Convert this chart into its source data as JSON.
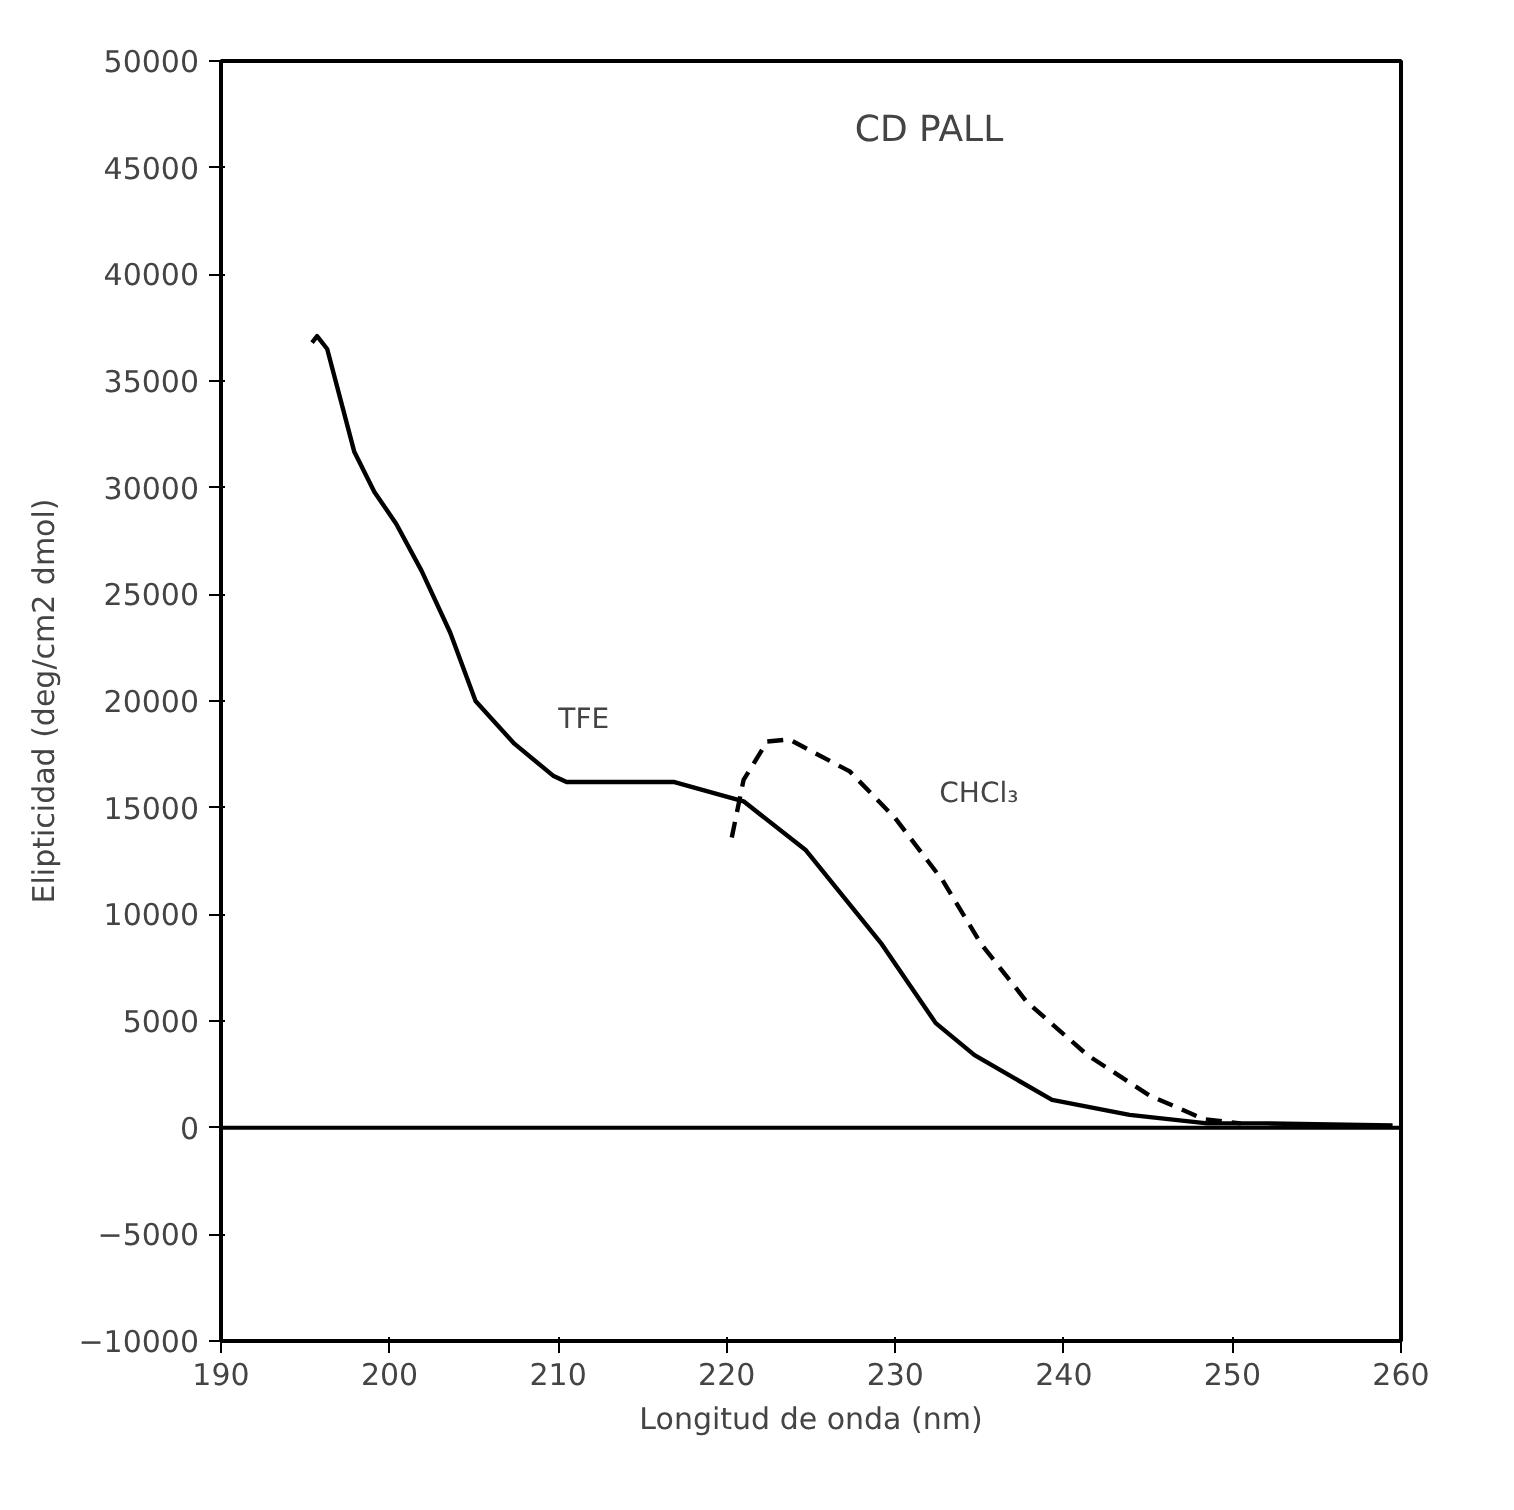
{
  "chart_data": {
    "type": "line",
    "title": "CD PALL",
    "xlabel": "Longitud de onda (nm)",
    "ylabel": "Elipticidad (deg/cm2 dmol)",
    "xlim": [
      190,
      260
    ],
    "xticks": [
      190,
      200,
      210,
      220,
      230,
      240,
      250,
      260
    ],
    "ylim": [
      -10000,
      50000
    ],
    "yticks": [
      -10000,
      -5000,
      0,
      5000,
      10000,
      15000,
      20000,
      25000,
      30000,
      35000,
      40000,
      45000,
      50000
    ],
    "grid": false,
    "marker": "none",
    "series": [
      {
        "name": "TFE",
        "color": "#000000",
        "line_style": "solid",
        "x": [
          195.4,
          195.7,
          196.3,
          197.9,
          199.1,
          200.4,
          201.9,
          203.6,
          205.1,
          207.4,
          209.7,
          210.5,
          216.9,
          221.0,
          224.7,
          229.2,
          232.4,
          234.7,
          239.3,
          243.9,
          248.5,
          252,
          259.5
        ],
        "values": [
          36800,
          37100,
          36500,
          31700,
          29800,
          28300,
          26100,
          23200,
          20000,
          18000,
          16500,
          16200,
          16200,
          15300,
          13000,
          8600,
          4900,
          3400,
          1300,
          600,
          200,
          200,
          100
        ]
      },
      {
        "name": "CHCl₃",
        "color": "#000000",
        "line_style": "dashed",
        "x": [
          220.3,
          221.0,
          222.4,
          223.7,
          227.3,
          230.0,
          232.8,
          235.1,
          237.8,
          241.4,
          245.1,
          248.3,
          250.5
        ],
        "values": [
          13600,
          16300,
          18100,
          18200,
          16700,
          14500,
          11600,
          8600,
          5900,
          3400,
          1500,
          400,
          200
        ]
      }
    ],
    "ref_lines": [
      {
        "axis": "y",
        "value": 0,
        "color": "#000000",
        "line_style": "solid"
      }
    ]
  }
}
